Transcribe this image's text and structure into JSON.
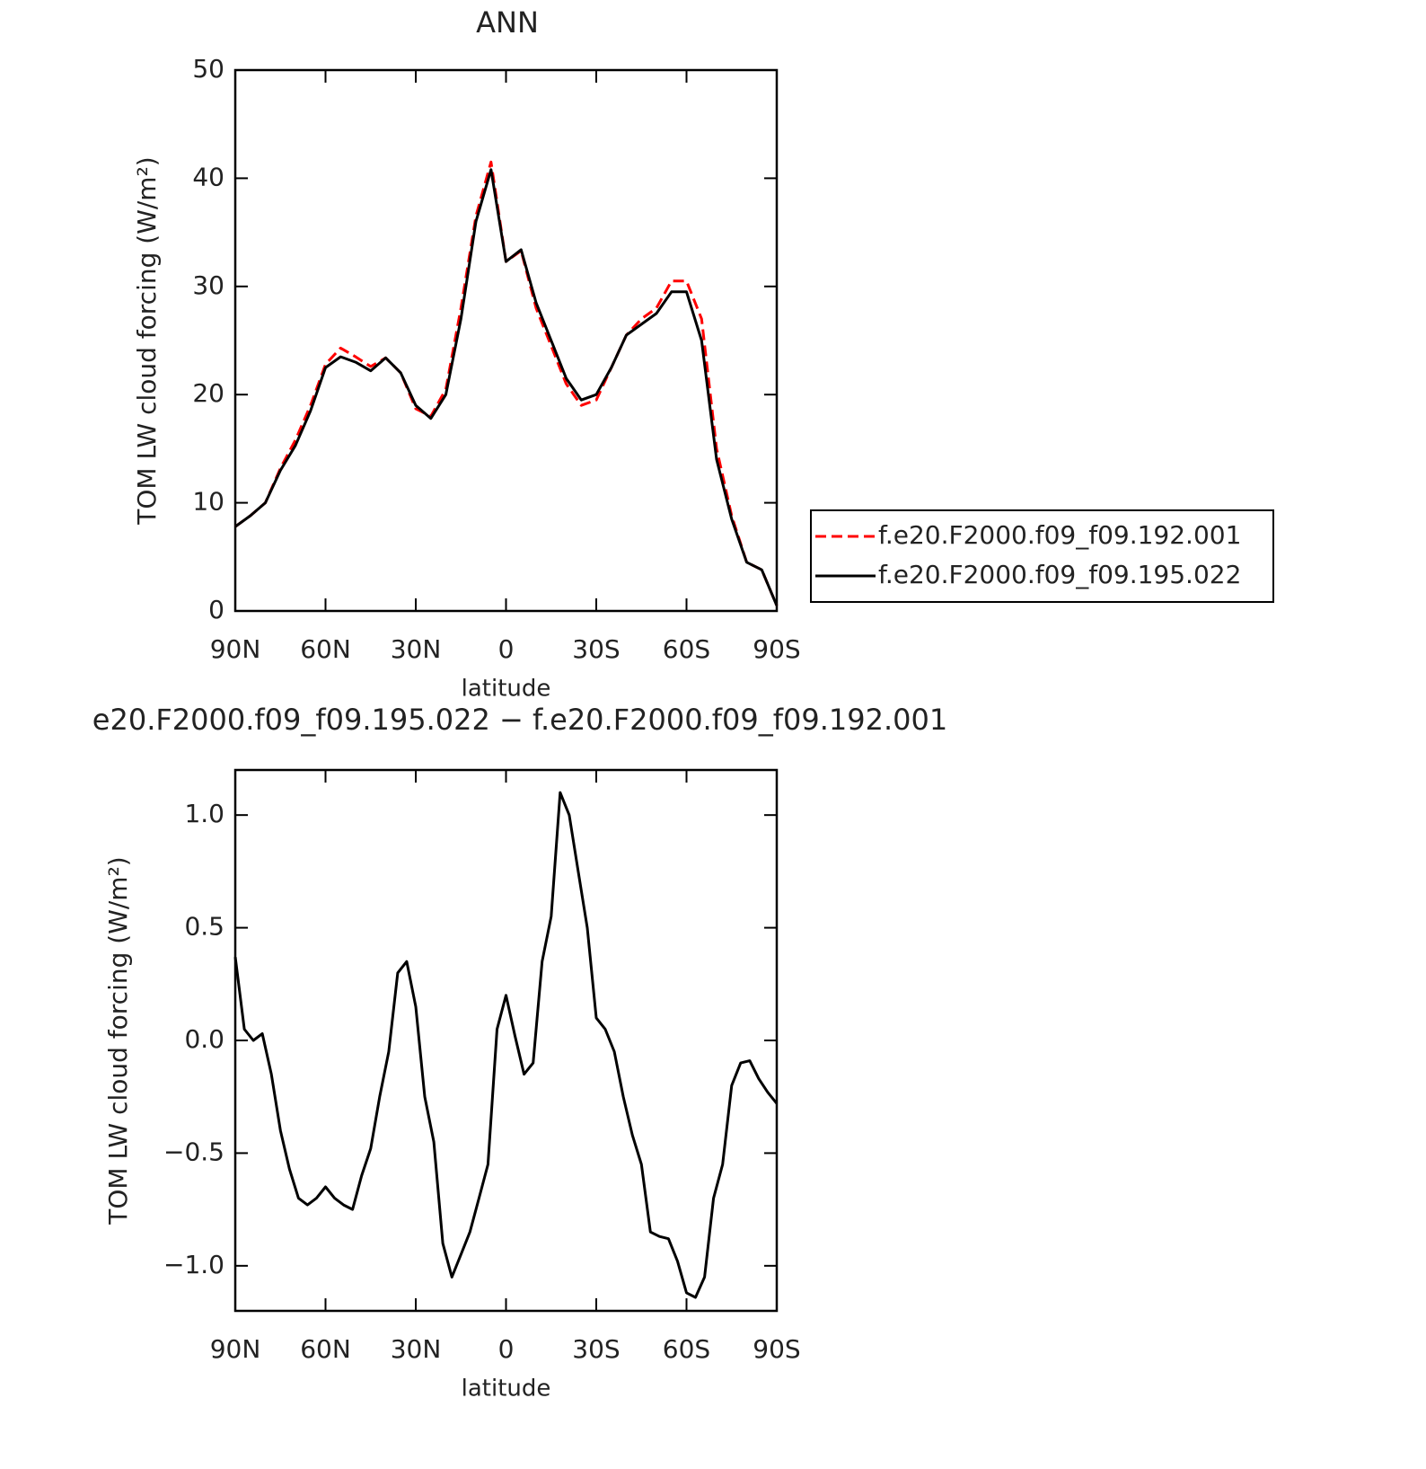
{
  "chart_data": [
    {
      "type": "line",
      "title": "ANN",
      "xlabel": "latitude",
      "ylabel": "TOM LW cloud forcing (W/m²)",
      "x": [
        90,
        85,
        80,
        75,
        70,
        65,
        60,
        55,
        50,
        45,
        40,
        35,
        30,
        25,
        20,
        15,
        10,
        5,
        0,
        -5,
        -10,
        -15,
        -20,
        -25,
        -30,
        -35,
        -40,
        -45,
        -50,
        -55,
        -60,
        -65,
        -70,
        -75,
        -80,
        -85,
        -90
      ],
      "xlim": [
        90,
        -90
      ],
      "xticks": [
        {
          "value": 90,
          "label": "90N"
        },
        {
          "value": 60,
          "label": "60N"
        },
        {
          "value": 30,
          "label": "30N"
        },
        0,
        {
          "value": -30,
          "label": "30S"
        },
        {
          "value": -60,
          "label": "60S"
        },
        {
          "value": -90,
          "label": "90S"
        }
      ],
      "ylim": [
        0,
        50
      ],
      "yticks": [
        0,
        10,
        20,
        30,
        40,
        50
      ],
      "legend": "right",
      "series": [
        {
          "name": "f.e20.F2000.f09_f09.192.001",
          "color": "#ff0000",
          "linestyle": "dashed",
          "values": [
            7.8,
            8.8,
            10,
            13.2,
            15.8,
            19,
            22.8,
            24.3,
            23.5,
            22.6,
            23.4,
            22,
            18.7,
            18,
            20.5,
            28,
            36.5,
            41.5,
            32.3,
            33.3,
            28,
            24.5,
            21,
            19,
            19.5,
            22.5,
            25.5,
            27,
            28,
            30.5,
            30.5,
            27,
            15,
            8.8,
            4.5,
            3.8,
            0.5
          ]
        },
        {
          "name": "f.e20.F2000.f09_f09.195.022",
          "color": "#000000",
          "linestyle": "solid",
          "values": [
            7.8,
            8.8,
            10,
            13,
            15.3,
            18.5,
            22.5,
            23.5,
            23,
            22.2,
            23.4,
            22,
            19,
            17.8,
            20,
            27,
            36,
            40.8,
            32.3,
            33.4,
            28.5,
            25,
            21.5,
            19.5,
            20,
            22.5,
            25.5,
            26.5,
            27.5,
            29.5,
            29.5,
            25,
            14,
            8.5,
            4.5,
            3.8,
            0.5
          ]
        }
      ]
    },
    {
      "type": "line",
      "title": "e20.F2000.f09_f09.195.022 − f.e20.F2000.f09_f09.192.001",
      "xlabel": "latitude",
      "ylabel": "TOM LW cloud forcing (W/m²)",
      "x": [
        90,
        87,
        84,
        81,
        78,
        75,
        72,
        69,
        66,
        63,
        60,
        57,
        54,
        51,
        48,
        45,
        42,
        39,
        36,
        33,
        30,
        27,
        24,
        21,
        18,
        15,
        12,
        9,
        6,
        3,
        0,
        -3,
        -6,
        -9,
        -12,
        -15,
        -18,
        -21,
        -24,
        -27,
        -30,
        -33,
        -36,
        -39,
        -42,
        -45,
        -48,
        -51,
        -54,
        -57,
        -60,
        -63,
        -66,
        -69,
        -72,
        -75,
        -78,
        -81,
        -84,
        -87,
        -90
      ],
      "xlim": [
        90,
        -90
      ],
      "xticks": [
        {
          "value": 90,
          "label": "90N"
        },
        {
          "value": 60,
          "label": "60N"
        },
        {
          "value": 30,
          "label": "30N"
        },
        0,
        {
          "value": -30,
          "label": "30S"
        },
        {
          "value": -60,
          "label": "60S"
        },
        {
          "value": -90,
          "label": "90S"
        }
      ],
      "ylim": [
        -1.2,
        1.2
      ],
      "yticks": [
        {
          "value": -1,
          "label": "−1.0"
        },
        {
          "value": -0.5,
          "label": "−0.5"
        },
        {
          "value": 0,
          "label": "0.0"
        },
        0.5,
        {
          "value": 1,
          "label": "1.0"
        }
      ],
      "series": [
        {
          "color": "#000000",
          "linestyle": "solid",
          "values": [
            0.37,
            0.05,
            0,
            0.03,
            -0.15,
            -0.4,
            -0.57,
            -0.7,
            -0.73,
            -0.7,
            -0.65,
            -0.7,
            -0.73,
            -0.75,
            -0.6,
            -0.48,
            -0.25,
            -0.05,
            0.3,
            0.35,
            0.15,
            -0.25,
            -0.45,
            -0.9,
            -1.05,
            -0.95,
            -0.85,
            -0.7,
            -0.55,
            0.05,
            0.2,
            0.02,
            -0.15,
            -0.1,
            0.35,
            0.55,
            1.1,
            1.0,
            0.75,
            0.5,
            0.1,
            0.05,
            -0.05,
            -0.25,
            -0.42,
            -0.55,
            -0.85,
            -0.87,
            -0.88,
            -0.98,
            -1.12,
            -1.14,
            -1.05,
            -0.7,
            -0.55,
            -0.2,
            -0.1,
            -0.09,
            -0.17,
            -0.23,
            -0.28
          ]
        }
      ]
    }
  ]
}
